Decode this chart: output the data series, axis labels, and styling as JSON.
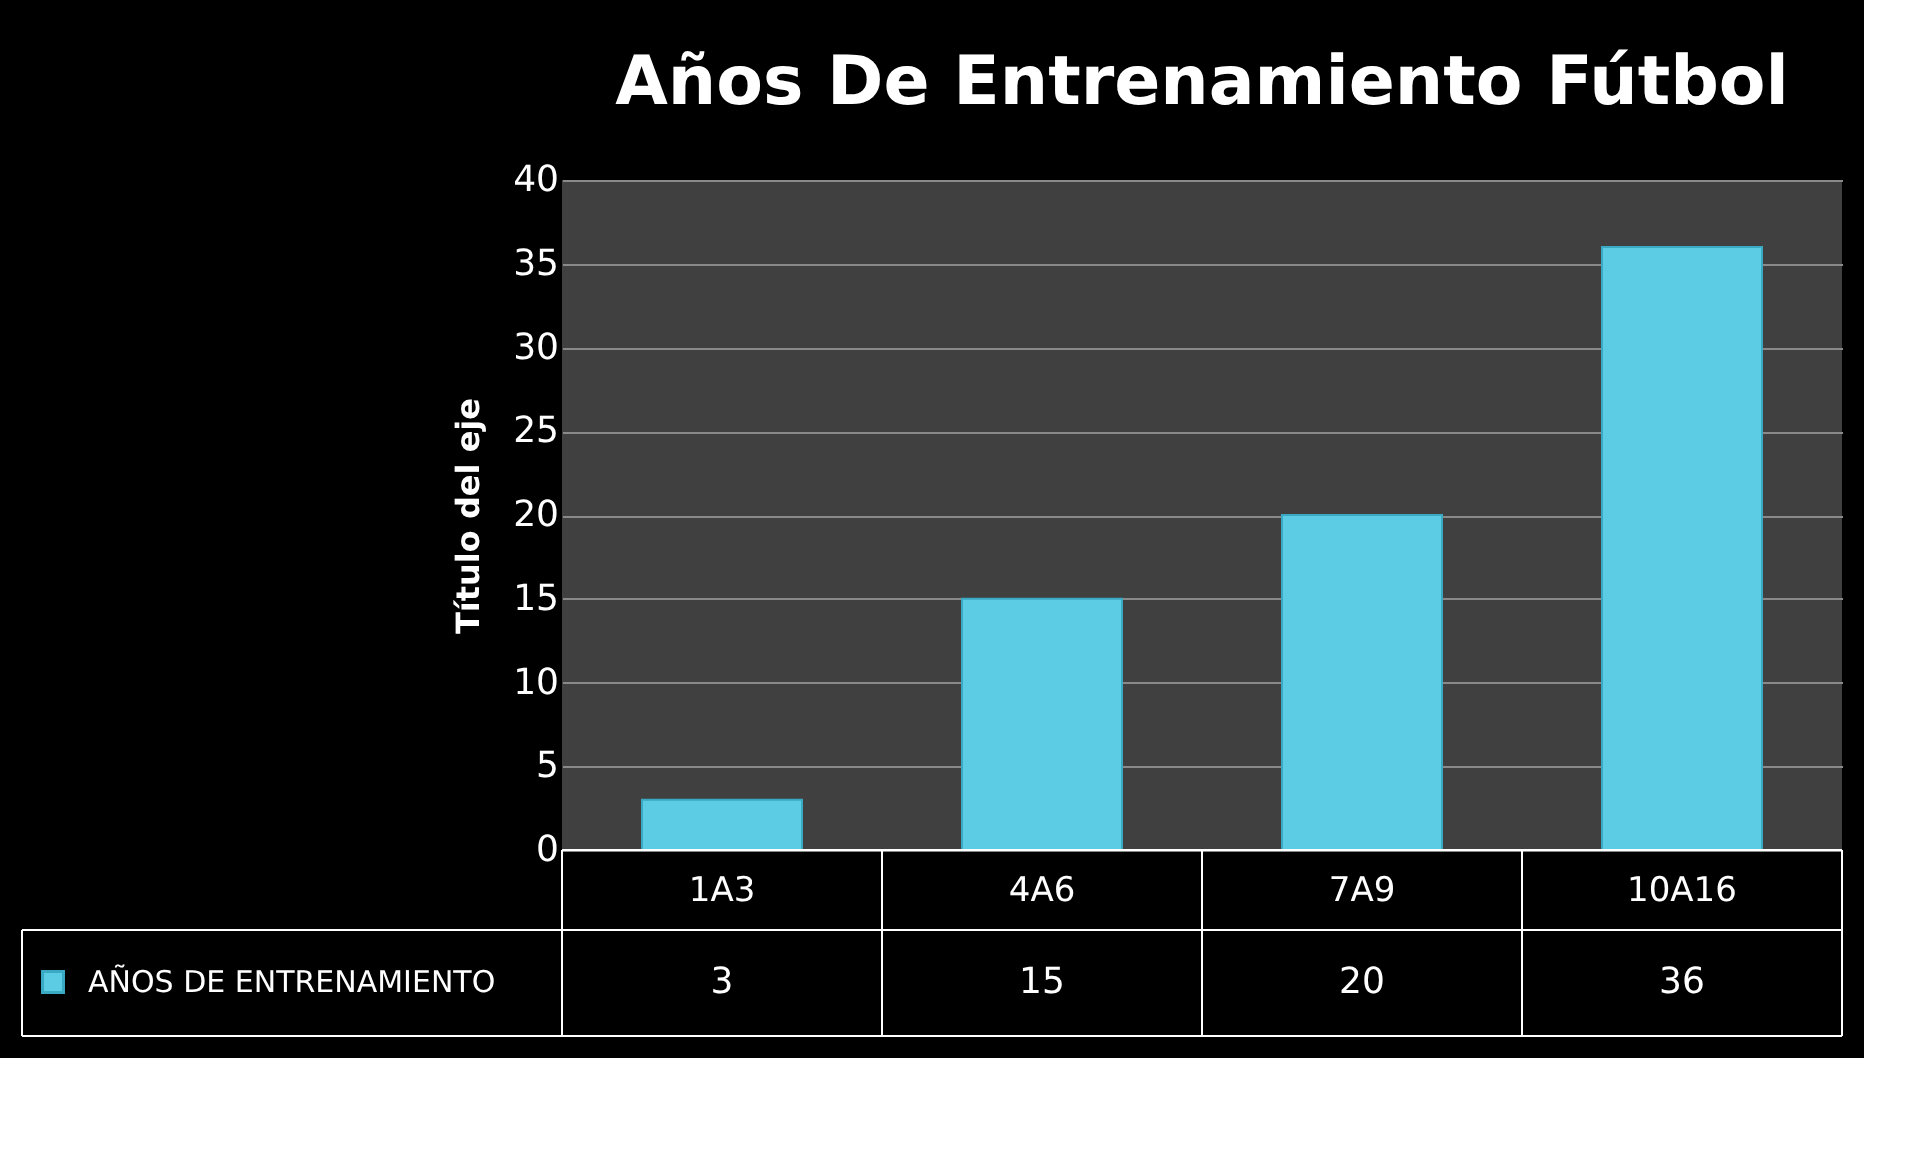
{
  "chart_data": {
    "type": "bar",
    "title": "Años De Entrenamiento Fútbol",
    "ylabel": "Título del eje",
    "categories": [
      "1A3",
      "4A6",
      "7A9",
      "10A16"
    ],
    "series": [
      {
        "name": "AÑOS DE ENTRENAMIENTO",
        "color": "#5ccbe4",
        "values": [
          3,
          15,
          20,
          36
        ]
      }
    ],
    "ylim": [
      0,
      40
    ],
    "yticks": [
      0,
      5,
      10,
      15,
      20,
      25,
      30,
      35,
      40
    ],
    "grid": "y",
    "legend": "bottom",
    "data_labels": true
  }
}
